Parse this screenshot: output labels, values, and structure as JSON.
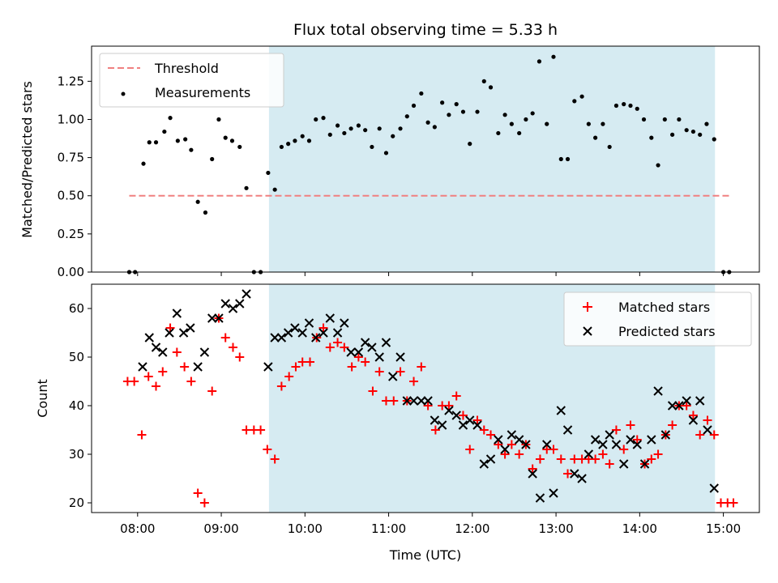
{
  "colors": {
    "shade": "#add8e6",
    "threshold": "#f08080",
    "measurement": "#000000",
    "matched": "#ff0000",
    "predicted": "#000000"
  },
  "chart_data": [
    {
      "type": "scatter",
      "title": "Flux total observing time = 5.33 h",
      "xlabel": "",
      "ylabel": "Matched/Predicted stars",
      "xlim": [
        7.45,
        15.43
      ],
      "ylim": [
        0.0,
        1.48
      ],
      "yticks": [
        0.0,
        0.25,
        0.5,
        0.75,
        1.0,
        1.25
      ],
      "yticklabels": [
        "0.00",
        "0.25",
        "0.50",
        "0.75",
        "1.00",
        "1.25"
      ],
      "shaded_region": [
        9.57,
        14.9
      ],
      "threshold": {
        "name": "Threshold",
        "value": 0.5,
        "x": [
          7.9,
          15.1
        ]
      },
      "legend": [
        "Threshold",
        "Measurements"
      ],
      "legend_loc": "upper left",
      "measurements": [
        [
          7.9,
          0.0
        ],
        [
          7.97,
          0.0
        ],
        [
          8.07,
          0.71
        ],
        [
          8.14,
          0.85
        ],
        [
          8.22,
          0.85
        ],
        [
          8.32,
          0.92
        ],
        [
          8.39,
          1.01
        ],
        [
          8.48,
          0.86
        ],
        [
          8.57,
          0.87
        ],
        [
          8.64,
          0.8
        ],
        [
          8.72,
          0.46
        ],
        [
          8.81,
          0.39
        ],
        [
          8.89,
          0.74
        ],
        [
          8.97,
          1.0
        ],
        [
          9.05,
          0.88
        ],
        [
          9.13,
          0.86
        ],
        [
          9.22,
          0.82
        ],
        [
          9.3,
          0.55
        ],
        [
          9.39,
          0.0
        ],
        [
          9.47,
          0.0
        ],
        [
          9.56,
          0.65
        ],
        [
          9.64,
          0.54
        ],
        [
          9.72,
          0.82
        ],
        [
          9.8,
          0.84
        ],
        [
          9.88,
          0.86
        ],
        [
          9.97,
          0.89
        ],
        [
          10.05,
          0.86
        ],
        [
          10.13,
          1.0
        ],
        [
          10.22,
          1.01
        ],
        [
          10.3,
          0.9
        ],
        [
          10.39,
          0.96
        ],
        [
          10.47,
          0.91
        ],
        [
          10.55,
          0.94
        ],
        [
          10.64,
          0.96
        ],
        [
          10.72,
          0.93
        ],
        [
          10.8,
          0.82
        ],
        [
          10.89,
          0.94
        ],
        [
          10.97,
          0.78
        ],
        [
          11.05,
          0.89
        ],
        [
          11.14,
          0.94
        ],
        [
          11.22,
          1.02
        ],
        [
          11.3,
          1.09
        ],
        [
          11.39,
          1.17
        ],
        [
          11.47,
          0.98
        ],
        [
          11.55,
          0.95
        ],
        [
          11.64,
          1.11
        ],
        [
          11.72,
          1.03
        ],
        [
          11.81,
          1.1
        ],
        [
          11.89,
          1.05
        ],
        [
          11.97,
          0.84
        ],
        [
          12.06,
          1.05
        ],
        [
          12.14,
          1.25
        ],
        [
          12.22,
          1.21
        ],
        [
          12.31,
          0.91
        ],
        [
          12.39,
          1.03
        ],
        [
          12.47,
          0.97
        ],
        [
          12.56,
          0.91
        ],
        [
          12.64,
          1.0
        ],
        [
          12.72,
          1.04
        ],
        [
          12.8,
          1.38
        ],
        [
          12.89,
          0.97
        ],
        [
          12.97,
          1.41
        ],
        [
          13.06,
          0.74
        ],
        [
          13.14,
          0.74
        ],
        [
          13.22,
          1.12
        ],
        [
          13.31,
          1.15
        ],
        [
          13.39,
          0.97
        ],
        [
          13.47,
          0.88
        ],
        [
          13.56,
          0.97
        ],
        [
          13.64,
          0.82
        ],
        [
          13.72,
          1.09
        ],
        [
          13.81,
          1.1
        ],
        [
          13.89,
          1.09
        ],
        [
          13.97,
          1.07
        ],
        [
          14.05,
          1.0
        ],
        [
          14.14,
          0.88
        ],
        [
          14.22,
          0.7
        ],
        [
          14.3,
          1.0
        ],
        [
          14.39,
          0.9
        ],
        [
          14.47,
          1.0
        ],
        [
          14.56,
          0.93
        ],
        [
          14.64,
          0.92
        ],
        [
          14.72,
          0.9
        ],
        [
          14.8,
          0.97
        ],
        [
          14.89,
          0.87
        ],
        [
          15.0,
          0.0
        ],
        [
          15.07,
          0.0
        ]
      ]
    },
    {
      "type": "scatter",
      "title": "",
      "xlabel": "Time (UTC)",
      "ylabel": "Count",
      "xlim": [
        7.45,
        15.43
      ],
      "ylim": [
        18,
        65
      ],
      "xticks": [
        8,
        9,
        10,
        11,
        12,
        13,
        14,
        15
      ],
      "xticklabels": [
        "08:00",
        "09:00",
        "10:00",
        "11:00",
        "12:00",
        "13:00",
        "14:00",
        "15:00"
      ],
      "yticks": [
        20,
        30,
        40,
        50,
        60
      ],
      "yticklabels": [
        "20",
        "30",
        "40",
        "50",
        "60"
      ],
      "shaded_region": [
        9.57,
        14.9
      ],
      "legend": [
        "Matched stars",
        "Predicted stars"
      ],
      "legend_loc": "upper right",
      "series": [
        {
          "name": "Matched stars",
          "marker": "plus",
          "points": [
            [
              7.88,
              45
            ],
            [
              7.96,
              45
            ],
            [
              8.05,
              34
            ],
            [
              8.13,
              46
            ],
            [
              8.22,
              44
            ],
            [
              8.3,
              47
            ],
            [
              8.39,
              56
            ],
            [
              8.47,
              51
            ],
            [
              8.56,
              48
            ],
            [
              8.64,
              45
            ],
            [
              8.72,
              22
            ],
            [
              8.8,
              20
            ],
            [
              8.89,
              43
            ],
            [
              8.97,
              58
            ],
            [
              9.05,
              54
            ],
            [
              9.14,
              52
            ],
            [
              9.22,
              50
            ],
            [
              9.3,
              35
            ],
            [
              9.39,
              35
            ],
            [
              9.47,
              35
            ],
            [
              9.55,
              31
            ],
            [
              9.64,
              29
            ],
            [
              9.72,
              44
            ],
            [
              9.81,
              46
            ],
            [
              9.89,
              48
            ],
            [
              9.97,
              49
            ],
            [
              10.06,
              49
            ],
            [
              10.14,
              54
            ],
            [
              10.22,
              56
            ],
            [
              10.3,
              52
            ],
            [
              10.39,
              53
            ],
            [
              10.47,
              52
            ],
            [
              10.56,
              48
            ],
            [
              10.64,
              50
            ],
            [
              10.72,
              49
            ],
            [
              10.81,
              43
            ],
            [
              10.89,
              47
            ],
            [
              10.97,
              41
            ],
            [
              11.06,
              41
            ],
            [
              11.14,
              47
            ],
            [
              11.22,
              41
            ],
            [
              11.3,
              45
            ],
            [
              11.39,
              48
            ],
            [
              11.47,
              40
            ],
            [
              11.56,
              35
            ],
            [
              11.64,
              40
            ],
            [
              11.72,
              40
            ],
            [
              11.81,
              42
            ],
            [
              11.89,
              38
            ],
            [
              11.97,
              31
            ],
            [
              12.06,
              37
            ],
            [
              12.14,
              35
            ],
            [
              12.22,
              34
            ],
            [
              12.31,
              32
            ],
            [
              12.39,
              30
            ],
            [
              12.47,
              32
            ],
            [
              12.56,
              30
            ],
            [
              12.64,
              32
            ],
            [
              12.72,
              27
            ],
            [
              12.81,
              29
            ],
            [
              12.89,
              31
            ],
            [
              12.97,
              31
            ],
            [
              13.06,
              29
            ],
            [
              13.14,
              26
            ],
            [
              13.22,
              29
            ],
            [
              13.31,
              29
            ],
            [
              13.39,
              29
            ],
            [
              13.47,
              29
            ],
            [
              13.56,
              30
            ],
            [
              13.64,
              28
            ],
            [
              13.72,
              35
            ],
            [
              13.81,
              31
            ],
            [
              13.89,
              36
            ],
            [
              13.97,
              33
            ],
            [
              14.06,
              28
            ],
            [
              14.14,
              29
            ],
            [
              14.22,
              30
            ],
            [
              14.31,
              34
            ],
            [
              14.39,
              36
            ],
            [
              14.47,
              40
            ],
            [
              14.56,
              40
            ],
            [
              14.64,
              38
            ],
            [
              14.72,
              34
            ],
            [
              14.81,
              37
            ],
            [
              14.89,
              34
            ],
            [
              14.97,
              20
            ],
            [
              15.05,
              20
            ],
            [
              15.12,
              20
            ]
          ]
        },
        {
          "name": "Predicted stars",
          "marker": "x",
          "points": [
            [
              8.06,
              48
            ],
            [
              8.14,
              54
            ],
            [
              8.22,
              52
            ],
            [
              8.3,
              51
            ],
            [
              8.38,
              55
            ],
            [
              8.47,
              59
            ],
            [
              8.55,
              55
            ],
            [
              8.63,
              56
            ],
            [
              8.72,
              48
            ],
            [
              8.8,
              51
            ],
            [
              8.89,
              58
            ],
            [
              8.97,
              58
            ],
            [
              9.05,
              61
            ],
            [
              9.14,
              60
            ],
            [
              9.22,
              61
            ],
            [
              9.3,
              63
            ],
            [
              9.56,
              48
            ],
            [
              9.64,
              54
            ],
            [
              9.72,
              54
            ],
            [
              9.8,
              55
            ],
            [
              9.88,
              56
            ],
            [
              9.97,
              55
            ],
            [
              10.05,
              57
            ],
            [
              10.13,
              54
            ],
            [
              10.22,
              55
            ],
            [
              10.3,
              58
            ],
            [
              10.39,
              55
            ],
            [
              10.47,
              57
            ],
            [
              10.55,
              51
            ],
            [
              10.64,
              51
            ],
            [
              10.72,
              53
            ],
            [
              10.8,
              52
            ],
            [
              10.89,
              50
            ],
            [
              10.97,
              53
            ],
            [
              11.05,
              46
            ],
            [
              11.14,
              50
            ],
            [
              11.22,
              41
            ],
            [
              11.3,
              41
            ],
            [
              11.39,
              41
            ],
            [
              11.47,
              41
            ],
            [
              11.55,
              37
            ],
            [
              11.64,
              36
            ],
            [
              11.72,
              39
            ],
            [
              11.81,
              38
            ],
            [
              11.89,
              36
            ],
            [
              11.97,
              37
            ],
            [
              12.06,
              36
            ],
            [
              12.14,
              28
            ],
            [
              12.22,
              29
            ],
            [
              12.31,
              33
            ],
            [
              12.39,
              31
            ],
            [
              12.47,
              34
            ],
            [
              12.56,
              33
            ],
            [
              12.64,
              32
            ],
            [
              12.72,
              26
            ],
            [
              12.81,
              21
            ],
            [
              12.89,
              32
            ],
            [
              12.97,
              22
            ],
            [
              13.06,
              39
            ],
            [
              13.14,
              35
            ],
            [
              13.22,
              26
            ],
            [
              13.31,
              25
            ],
            [
              13.39,
              30
            ],
            [
              13.47,
              33
            ],
            [
              13.56,
              32
            ],
            [
              13.64,
              34
            ],
            [
              13.72,
              32
            ],
            [
              13.81,
              28
            ],
            [
              13.89,
              33
            ],
            [
              13.97,
              32
            ],
            [
              14.06,
              28
            ],
            [
              14.14,
              33
            ],
            [
              14.22,
              43
            ],
            [
              14.31,
              34
            ],
            [
              14.39,
              40
            ],
            [
              14.47,
              40
            ],
            [
              14.56,
              41
            ],
            [
              14.64,
              37
            ],
            [
              14.72,
              41
            ],
            [
              14.81,
              35
            ],
            [
              14.89,
              23
            ]
          ]
        }
      ]
    }
  ]
}
